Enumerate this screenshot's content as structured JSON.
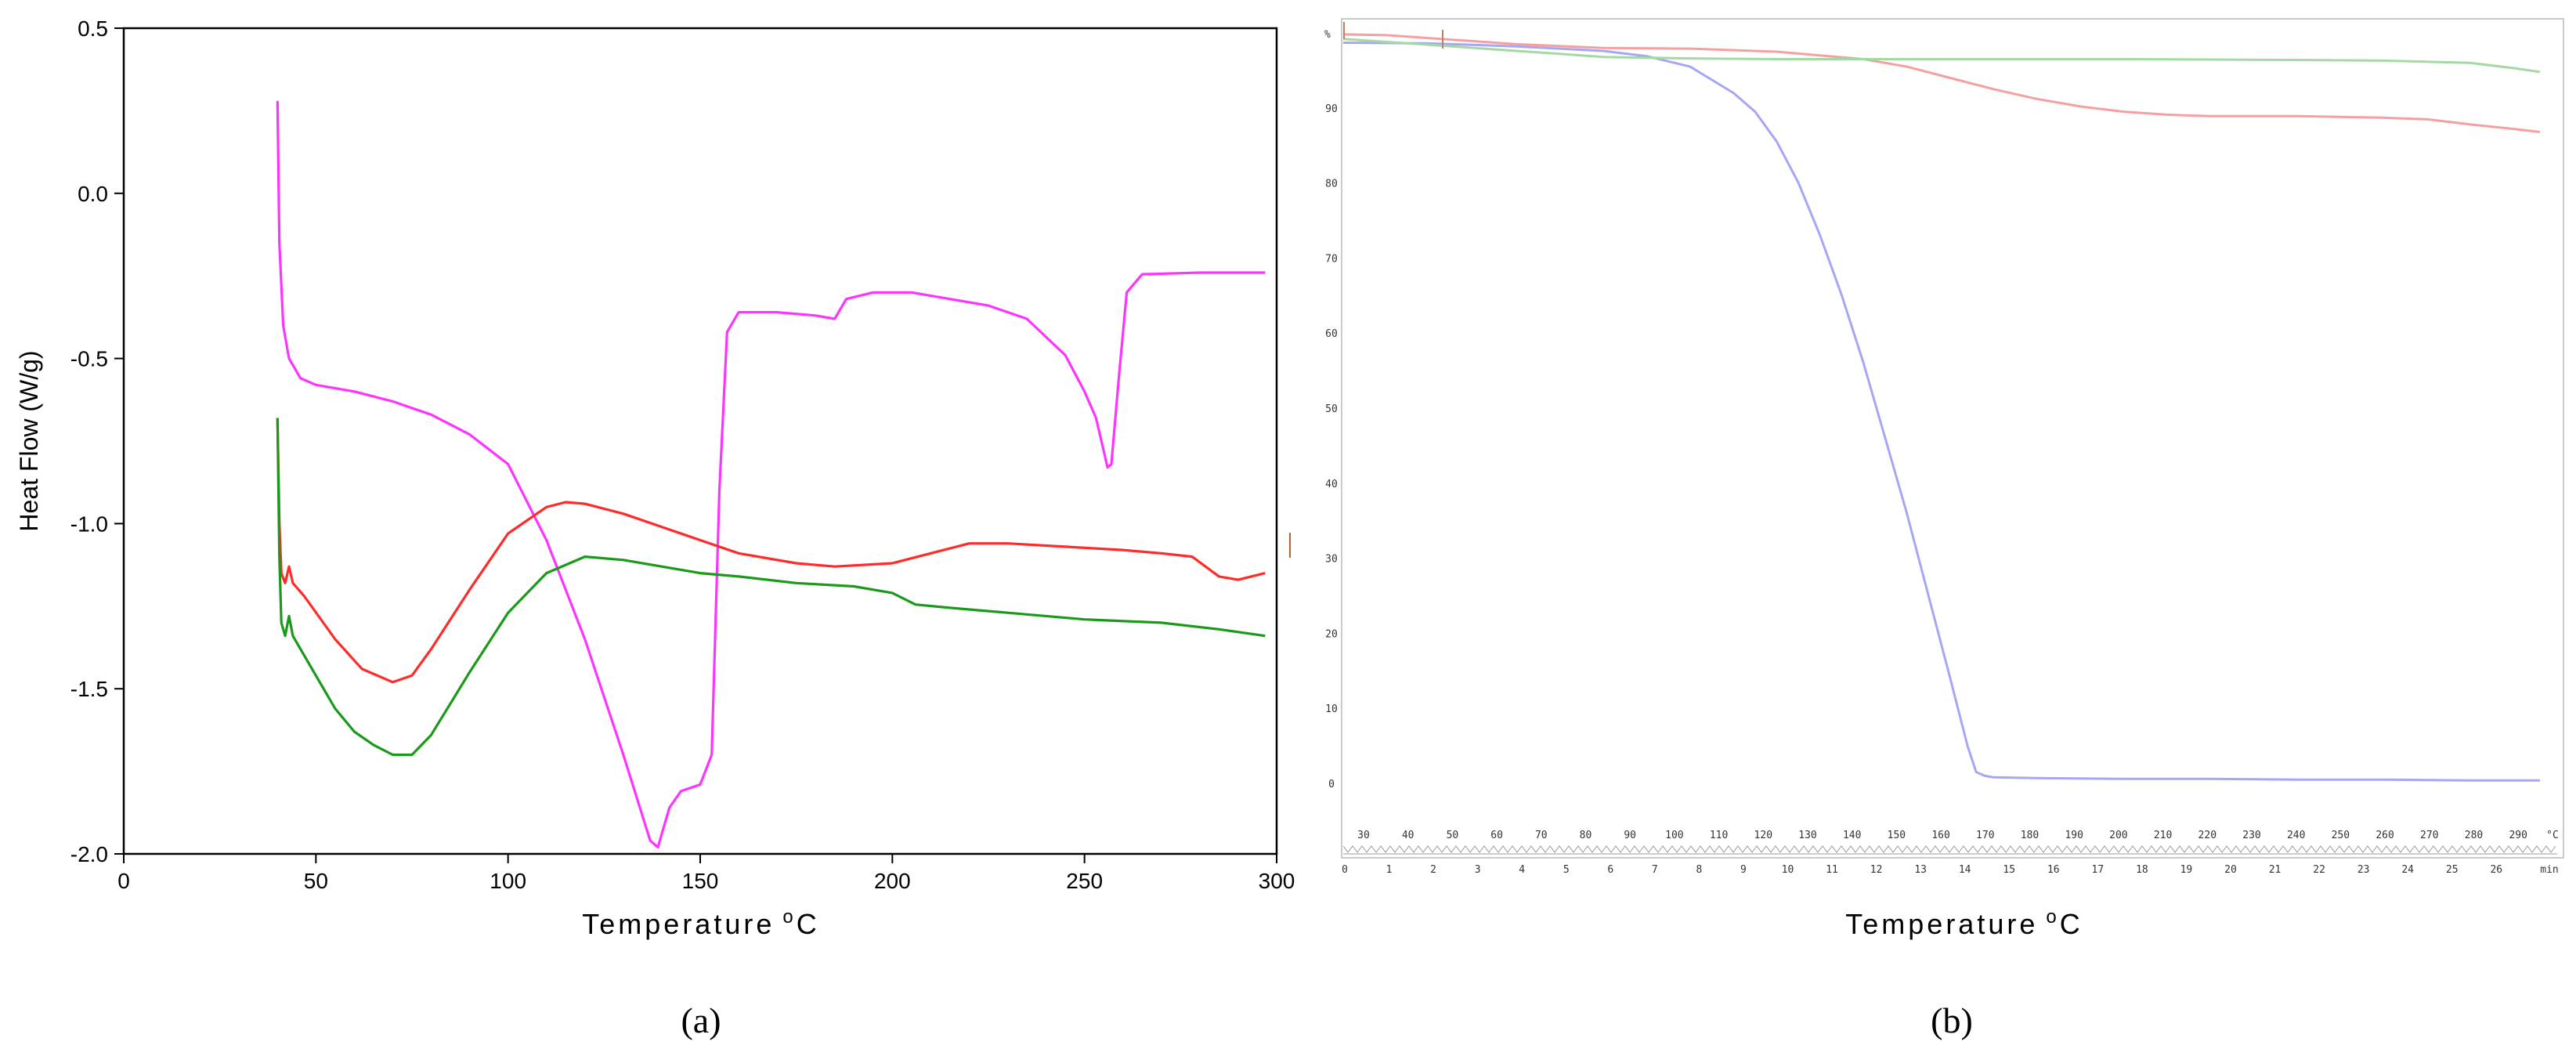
{
  "chart_data": [
    {
      "type": "line",
      "panel_label": "(a)",
      "xlabel_main": "Temperature",
      "xlabel_sup": "o",
      "xlabel_tail": "C",
      "ylabel": "Heat Flow (W/g)",
      "xlim": [
        0,
        300
      ],
      "ylim": [
        -2.0,
        0.5
      ],
      "xticks": [
        0,
        50,
        100,
        150,
        200,
        250,
        300
      ],
      "yticks": [
        0.5,
        0.0,
        -0.5,
        -1.0,
        -1.5,
        -2.0
      ],
      "ytick_labels": [
        "0.5",
        "0.0",
        "-0.5",
        "-1.0",
        "-1.5",
        "-2.0"
      ],
      "series": [
        {
          "color": "#ff33ff",
          "points": [
            [
              40,
              0.28
            ],
            [
              40.5,
              -0.15
            ],
            [
              41.5,
              -0.4
            ],
            [
              43,
              -0.5
            ],
            [
              46,
              -0.56
            ],
            [
              50,
              -0.58
            ],
            [
              60,
              -0.6
            ],
            [
              70,
              -0.63
            ],
            [
              80,
              -0.67
            ],
            [
              90,
              -0.73
            ],
            [
              100,
              -0.82
            ],
            [
              110,
              -1.05
            ],
            [
              120,
              -1.35
            ],
            [
              130,
              -1.7
            ],
            [
              137,
              -1.96
            ],
            [
              139,
              -1.98
            ],
            [
              142,
              -1.86
            ],
            [
              145,
              -1.81
            ],
            [
              150,
              -1.79
            ],
            [
              153,
              -1.7
            ],
            [
              155,
              -0.9
            ],
            [
              157,
              -0.42
            ],
            [
              160,
              -0.36
            ],
            [
              170,
              -0.36
            ],
            [
              180,
              -0.37
            ],
            [
              185,
              -0.38
            ],
            [
              188,
              -0.32
            ],
            [
              195,
              -0.3
            ],
            [
              205,
              -0.3
            ],
            [
              215,
              -0.32
            ],
            [
              225,
              -0.34
            ],
            [
              235,
              -0.38
            ],
            [
              245,
              -0.49
            ],
            [
              250,
              -0.6
            ],
            [
              253,
              -0.68
            ],
            [
              256,
              -0.83
            ],
            [
              257,
              -0.82
            ],
            [
              259,
              -0.55
            ],
            [
              261,
              -0.3
            ],
            [
              265,
              -0.245
            ],
            [
              280,
              -0.24
            ],
            [
              297,
              -0.24
            ]
          ]
        },
        {
          "color": "#ff2a2a",
          "points": [
            [
              40,
              -0.68
            ],
            [
              40.5,
              -1.0
            ],
            [
              41,
              -1.15
            ],
            [
              42,
              -1.18
            ],
            [
              43,
              -1.13
            ],
            [
              44,
              -1.18
            ],
            [
              47,
              -1.22
            ],
            [
              55,
              -1.35
            ],
            [
              62,
              -1.44
            ],
            [
              70,
              -1.48
            ],
            [
              75,
              -1.46
            ],
            [
              80,
              -1.38
            ],
            [
              90,
              -1.2
            ],
            [
              100,
              -1.03
            ],
            [
              110,
              -0.95
            ],
            [
              115,
              -0.935
            ],
            [
              120,
              -0.94
            ],
            [
              130,
              -0.97
            ],
            [
              140,
              -1.01
            ],
            [
              150,
              -1.05
            ],
            [
              160,
              -1.09
            ],
            [
              175,
              -1.12
            ],
            [
              185,
              -1.13
            ],
            [
              200,
              -1.12
            ],
            [
              210,
              -1.09
            ],
            [
              220,
              -1.06
            ],
            [
              230,
              -1.06
            ],
            [
              245,
              -1.07
            ],
            [
              260,
              -1.08
            ],
            [
              270,
              -1.09
            ],
            [
              278,
              -1.1
            ],
            [
              285,
              -1.16
            ],
            [
              290,
              -1.17
            ],
            [
              297,
              -1.15
            ]
          ]
        },
        {
          "color": "#1a991a",
          "points": [
            [
              40,
              -0.68
            ],
            [
              40.5,
              -1.1
            ],
            [
              41,
              -1.3
            ],
            [
              42,
              -1.34
            ],
            [
              43,
              -1.28
            ],
            [
              44,
              -1.34
            ],
            [
              46,
              -1.38
            ],
            [
              50,
              -1.46
            ],
            [
              55,
              -1.56
            ],
            [
              60,
              -1.63
            ],
            [
              65,
              -1.67
            ],
            [
              70,
              -1.7
            ],
            [
              75,
              -1.7
            ],
            [
              80,
              -1.64
            ],
            [
              90,
              -1.45
            ],
            [
              100,
              -1.27
            ],
            [
              110,
              -1.15
            ],
            [
              120,
              -1.1
            ],
            [
              130,
              -1.11
            ],
            [
              140,
              -1.13
            ],
            [
              150,
              -1.15
            ],
            [
              160,
              -1.16
            ],
            [
              175,
              -1.18
            ],
            [
              190,
              -1.19
            ],
            [
              200,
              -1.21
            ],
            [
              206,
              -1.245
            ],
            [
              215,
              -1.255
            ],
            [
              230,
              -1.27
            ],
            [
              250,
              -1.29
            ],
            [
              270,
              -1.3
            ],
            [
              285,
              -1.32
            ],
            [
              297,
              -1.34
            ]
          ]
        }
      ]
    },
    {
      "type": "line",
      "panel_label": "(b)",
      "xlabel_main": "Temperature",
      "xlabel_sup": "o",
      "xlabel_tail": "C",
      "ylabel_unit": "%",
      "ylim": [
        0,
        100
      ],
      "yticks": [
        90,
        80,
        70,
        60,
        50,
        40,
        30,
        20,
        10,
        0
      ],
      "xlim_min": [
        0,
        28
      ],
      "temp_ticks": [
        "30",
        "40",
        "50",
        "60",
        "70",
        "80",
        "90",
        "100",
        "110",
        "120",
        "130",
        "140",
        "150",
        "160",
        "170",
        "180",
        "190",
        "200",
        "210",
        "220",
        "230",
        "240",
        "250",
        "260",
        "270",
        "280",
        "290"
      ],
      "temp_unit": "°C",
      "min_ticks": [
        "0",
        "1",
        "2",
        "3",
        "4",
        "5",
        "6",
        "7",
        "8",
        "9",
        "10",
        "11",
        "12",
        "13",
        "14",
        "15",
        "16",
        "17",
        "18",
        "19",
        "20",
        "21",
        "22",
        "23",
        "24",
        "25",
        "26"
      ],
      "min_unit": "min",
      "series": [
        {
          "color": "#a6a6f5",
          "points": [
            [
              0,
              98.7
            ],
            [
              2,
              98.6
            ],
            [
              4,
              98.2
            ],
            [
              6,
              97.6
            ],
            [
              7,
              96.9
            ],
            [
              8,
              95.5
            ],
            [
              9,
              92.0
            ],
            [
              9.5,
              89.5
            ],
            [
              10,
              85.5
            ],
            [
              10.5,
              80.0
            ],
            [
              11,
              73.0
            ],
            [
              11.5,
              65.0
            ],
            [
              12,
              56.0
            ],
            [
              12.5,
              46.0
            ],
            [
              13,
              36.0
            ],
            [
              13.5,
              25.0
            ],
            [
              14,
              14.0
            ],
            [
              14.4,
              5.0
            ],
            [
              14.6,
              1.5
            ],
            [
              14.8,
              1.0
            ],
            [
              15,
              0.8
            ],
            [
              16,
              0.7
            ],
            [
              18,
              0.6
            ],
            [
              20,
              0.6
            ],
            [
              22,
              0.5
            ],
            [
              24,
              0.5
            ],
            [
              26,
              0.4
            ],
            [
              27.6,
              0.4
            ]
          ]
        },
        {
          "color": "#f5a0a0",
          "points": [
            [
              0,
              99.8
            ],
            [
              1,
              99.7
            ],
            [
              2,
              99.3
            ],
            [
              4,
              98.5
            ],
            [
              6,
              98.0
            ],
            [
              8,
              97.9
            ],
            [
              10,
              97.5
            ],
            [
              12,
              96.5
            ],
            [
              13,
              95.5
            ],
            [
              14,
              94.0
            ],
            [
              15,
              92.5
            ],
            [
              16,
              91.2
            ],
            [
              17,
              90.2
            ],
            [
              18,
              89.5
            ],
            [
              19,
              89.1
            ],
            [
              20,
              88.9
            ],
            [
              22,
              88.9
            ],
            [
              24,
              88.7
            ],
            [
              25,
              88.5
            ],
            [
              26,
              87.8
            ],
            [
              27,
              87.2
            ],
            [
              27.6,
              86.8
            ]
          ]
        },
        {
          "color": "#a3d9a3",
          "points": [
            [
              0,
              99.2
            ],
            [
              1,
              98.8
            ],
            [
              2,
              98.4
            ],
            [
              4,
              97.6
            ],
            [
              5,
              97.2
            ],
            [
              6,
              96.8
            ],
            [
              8,
              96.6
            ],
            [
              10,
              96.5
            ],
            [
              14,
              96.5
            ],
            [
              18,
              96.5
            ],
            [
              22,
              96.4
            ],
            [
              24,
              96.3
            ],
            [
              26,
              96.0
            ],
            [
              27,
              95.3
            ],
            [
              27.6,
              94.8
            ]
          ]
        }
      ]
    }
  ]
}
